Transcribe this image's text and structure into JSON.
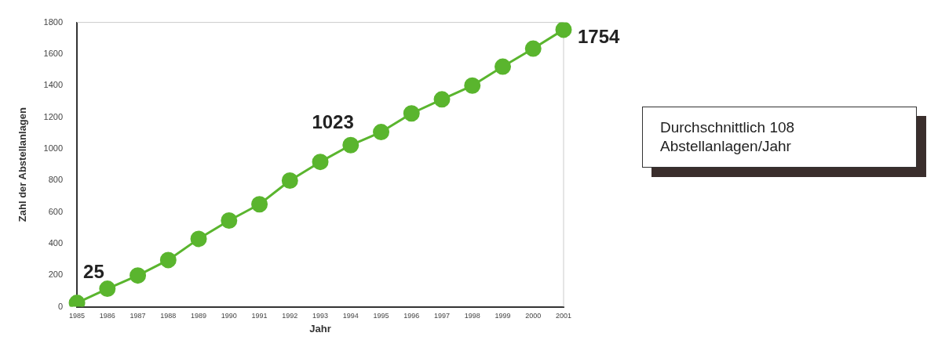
{
  "chart_data": {
    "type": "line",
    "xlabel": "Jahr",
    "ylabel": "Zahl der Abstellanlagen",
    "categories": [
      "1985",
      "1986",
      "1987",
      "1988",
      "1989",
      "1990",
      "1991",
      "1992",
      "1993",
      "1994",
      "1995",
      "1996",
      "1997",
      "1998",
      "1999",
      "2000",
      "2001"
    ],
    "series": [
      {
        "color": "#5ab52e",
        "values": [
          25,
          114,
          198,
          296,
          430,
          546,
          649,
          799,
          917,
          1023,
          1106,
          1224,
          1313,
          1400,
          1520,
          1634,
          1754
        ],
        "value_labels": [
          "25",
          null,
          null,
          null,
          null,
          null,
          null,
          null,
          null,
          "1023",
          null,
          null,
          null,
          null,
          null,
          null,
          "1754"
        ]
      }
    ],
    "ylim": [
      0,
      1800
    ],
    "yticks": [
      0,
      200,
      400,
      600,
      800,
      1000,
      1200,
      1400,
      1600,
      1800
    ],
    "grid": false,
    "legend": false,
    "marker": "circle",
    "line_style": "solid",
    "annotations": [
      "Durchschnittlich 108 Abstellanlagen/Jahr"
    ]
  }
}
